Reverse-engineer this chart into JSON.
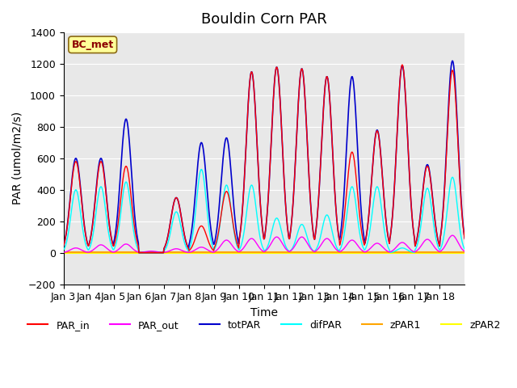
{
  "title": "Bouldin Corn PAR",
  "ylabel": "PAR (umol/m2/s)",
  "xlabel": "Time",
  "ylim": [
    -200,
    1400
  ],
  "yticks": [
    -200,
    0,
    200,
    400,
    600,
    800,
    1000,
    1200,
    1400
  ],
  "x_labels": [
    "Jan 3",
    "Jan 4",
    "Jan 5",
    "Jan 6",
    "Jan 7",
    "Jan 8",
    "Jan 9",
    "Jan 10",
    "Jan 11",
    "Jan 12",
    "Jan 13",
    "Jan 14",
    "Jan 15",
    "Jan 16",
    "Jan 17",
    "Jan 18"
  ],
  "annotation": "BC_met",
  "annotation_color": "#8B0000",
  "annotation_bg": "#FFFF99",
  "annotation_edge": "#8B6914",
  "legend_items": [
    {
      "label": "PAR_in",
      "color": "#FF0000"
    },
    {
      "label": "PAR_out",
      "color": "#FF00FF"
    },
    {
      "label": "totPAR",
      "color": "#0000CC"
    },
    {
      "label": "difPAR",
      "color": "#00FFFF"
    },
    {
      "label": "zPAR1",
      "color": "#FFA500"
    },
    {
      "label": "zPAR2",
      "color": "#FFFF00"
    }
  ],
  "tot_peaks": [
    600,
    600,
    850,
    0,
    350,
    700,
    730,
    1150,
    1180,
    1170,
    1120,
    1120,
    780,
    1190,
    560,
    1220
  ],
  "par_in_peaks": [
    580,
    580,
    550,
    0,
    350,
    170,
    390,
    1150,
    1180,
    1170,
    1120,
    640,
    775,
    1195,
    550,
    1160
  ],
  "par_out_peaks": [
    30,
    50,
    55,
    10,
    25,
    35,
    80,
    90,
    100,
    100,
    90,
    80,
    60,
    65,
    85,
    110
  ],
  "dif_peaks": [
    400,
    420,
    450,
    0,
    260,
    530,
    430,
    430,
    220,
    180,
    240,
    420,
    420,
    30,
    410,
    480
  ],
  "bg_color": "#E8E8E8",
  "title_fontsize": 13,
  "axis_fontsize": 10,
  "tick_fontsize": 9
}
